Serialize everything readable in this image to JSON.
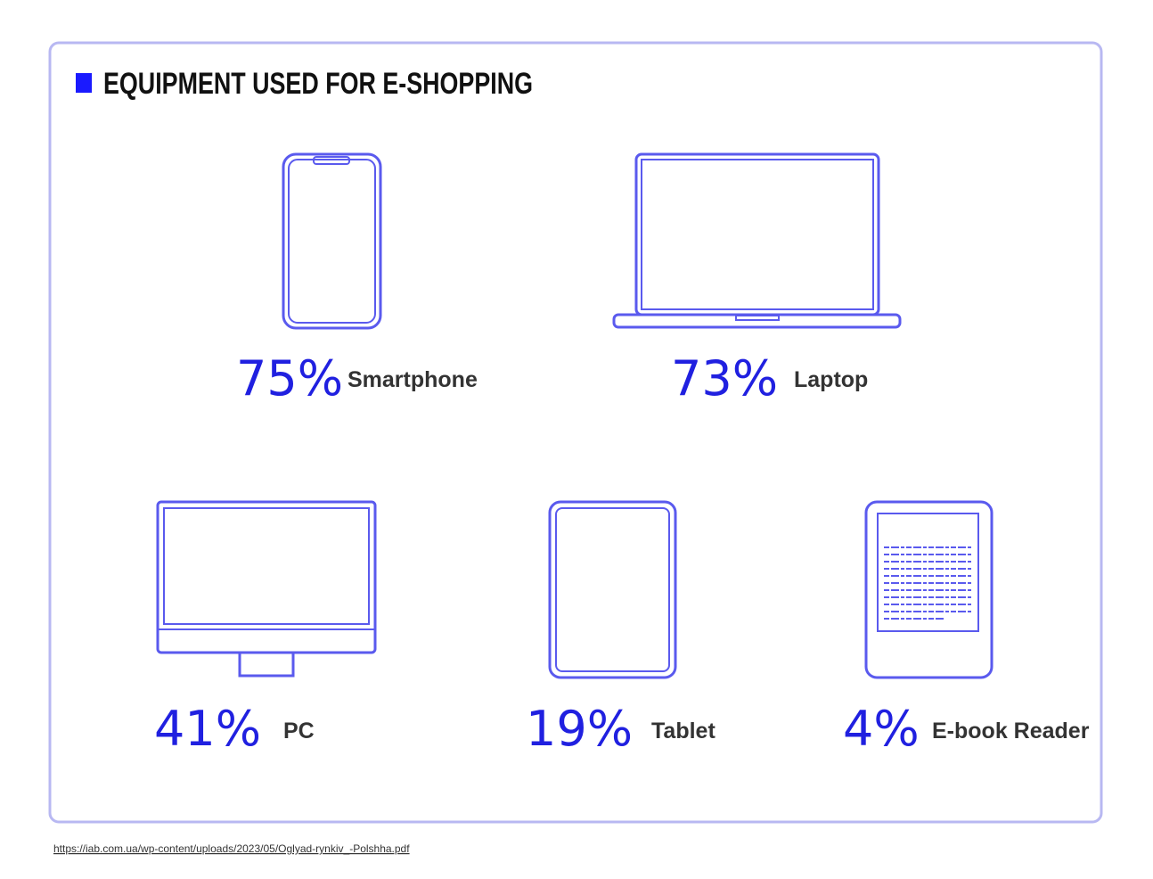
{
  "title": "EQUIPMENT USED FOR E-SHOPPING",
  "items": [
    {
      "value": "75%",
      "label": "Smartphone"
    },
    {
      "value": "73%",
      "label": "Laptop"
    },
    {
      "value": "41%",
      "label": "PC"
    },
    {
      "value": "19%",
      "label": "Tablet"
    },
    {
      "value": "4%",
      "label": "E-book Reader"
    }
  ],
  "source": "https://iab.com.ua/wp-content/uploads/2023/05/Oglyad-rynkiv_-Polshha.pdf"
}
